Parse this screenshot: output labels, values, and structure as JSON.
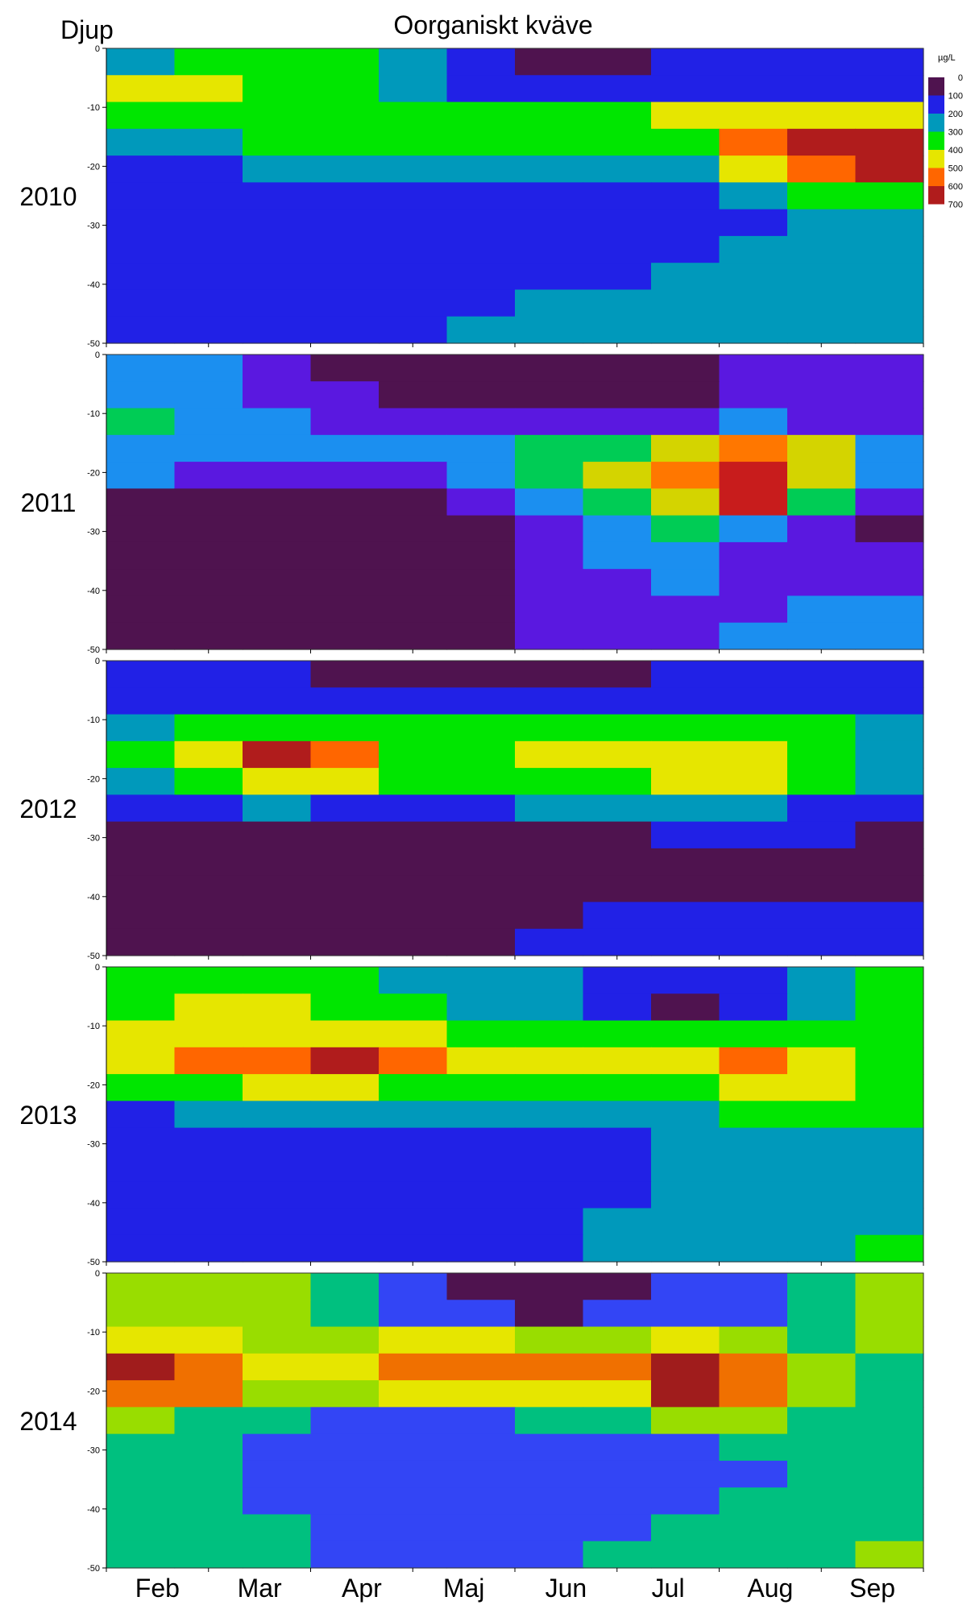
{
  "chart_data": {
    "type": "heatmap",
    "title": "Oorganiskt kväve",
    "ylabel": "Djup",
    "colorbar_unit": "µg/L",
    "colorbar_levels": [
      0,
      100,
      200,
      300,
      400,
      500,
      600,
      700
    ],
    "colorbar_colors": [
      "#4f134f",
      "#2121e6",
      "#0099bb",
      "#00e600",
      "#e6e600",
      "#ff6600",
      "#b01c1c"
    ],
    "palettes": {
      "standard": [
        "#4f134f",
        "#2121e6",
        "#0099bb",
        "#00e600",
        "#e6e600",
        "#ff6600",
        "#b01c1c"
      ],
      "alt2011": [
        "#4f134f",
        "#5a18e0",
        "#1b8ff0",
        "#00cc55",
        "#d4d400",
        "#ff7700",
        "#c81c1c"
      ],
      "alt2014": [
        "#4f134f",
        "#3345f5",
        "#00c07f",
        "#99dd00",
        "#e6e600",
        "#f07000",
        "#a01c1c"
      ]
    },
    "months": [
      "Feb",
      "Mar",
      "Apr",
      "Maj",
      "Jun",
      "Jul",
      "Aug",
      "Sep"
    ],
    "y_ticks": [
      0,
      -10,
      -20,
      -30,
      -40,
      -50
    ],
    "ylim": [
      -50,
      0
    ],
    "panels": [
      {
        "year": "2010",
        "palette": "standard",
        "grid": [
          [
            2,
            3,
            3,
            3,
            2,
            1,
            0,
            0,
            1,
            1,
            1,
            1
          ],
          [
            4,
            4,
            3,
            3,
            2,
            1,
            1,
            1,
            1,
            1,
            1,
            1
          ],
          [
            3,
            3,
            3,
            3,
            3,
            3,
            3,
            3,
            4,
            4,
            4,
            4
          ],
          [
            2,
            2,
            3,
            3,
            3,
            3,
            3,
            3,
            3,
            5,
            6,
            6
          ],
          [
            1,
            1,
            2,
            2,
            2,
            2,
            2,
            2,
            2,
            4,
            5,
            6
          ],
          [
            1,
            1,
            1,
            1,
            1,
            1,
            1,
            1,
            1,
            2,
            3,
            3
          ],
          [
            1,
            1,
            1,
            1,
            1,
            1,
            1,
            1,
            1,
            1,
            2,
            2
          ],
          [
            1,
            1,
            1,
            1,
            1,
            1,
            1,
            1,
            1,
            2,
            2,
            2
          ],
          [
            1,
            1,
            1,
            1,
            1,
            1,
            1,
            1,
            2,
            2,
            2,
            2
          ],
          [
            1,
            1,
            1,
            1,
            1,
            1,
            2,
            2,
            2,
            2,
            2,
            2
          ],
          [
            1,
            1,
            1,
            1,
            1,
            2,
            2,
            2,
            2,
            2,
            2,
            2
          ]
        ]
      },
      {
        "year": "2011",
        "palette": "alt2011",
        "grid": [
          [
            2,
            2,
            1,
            0,
            0,
            0,
            0,
            0,
            0,
            1,
            1,
            1
          ],
          [
            2,
            2,
            1,
            1,
            0,
            0,
            0,
            0,
            0,
            1,
            1,
            1
          ],
          [
            3,
            2,
            2,
            1,
            1,
            1,
            1,
            1,
            1,
            2,
            1,
            1
          ],
          [
            2,
            2,
            2,
            2,
            2,
            2,
            3,
            3,
            4,
            5,
            4,
            2
          ],
          [
            2,
            1,
            1,
            1,
            1,
            2,
            3,
            4,
            5,
            6,
            4,
            2
          ],
          [
            0,
            0,
            0,
            0,
            0,
            1,
            2,
            3,
            4,
            6,
            3,
            1
          ],
          [
            0,
            0,
            0,
            0,
            0,
            0,
            1,
            2,
            3,
            2,
            1,
            0
          ],
          [
            0,
            0,
            0,
            0,
            0,
            0,
            1,
            2,
            2,
            1,
            1,
            1
          ],
          [
            0,
            0,
            0,
            0,
            0,
            0,
            1,
            1,
            2,
            1,
            1,
            1
          ],
          [
            0,
            0,
            0,
            0,
            0,
            0,
            1,
            1,
            1,
            1,
            2,
            2
          ],
          [
            0,
            0,
            0,
            0,
            0,
            0,
            1,
            1,
            1,
            2,
            2,
            2
          ]
        ]
      },
      {
        "year": "2012",
        "palette": "standard",
        "grid": [
          [
            1,
            1,
            1,
            0,
            0,
            0,
            0,
            0,
            1,
            1,
            1,
            1
          ],
          [
            1,
            1,
            1,
            1,
            1,
            1,
            1,
            1,
            1,
            1,
            1,
            1
          ],
          [
            2,
            3,
            3,
            3,
            3,
            3,
            3,
            3,
            3,
            3,
            3,
            2
          ],
          [
            3,
            4,
            6,
            5,
            3,
            3,
            4,
            4,
            4,
            4,
            3,
            2
          ],
          [
            2,
            3,
            4,
            4,
            3,
            3,
            3,
            3,
            4,
            4,
            3,
            2
          ],
          [
            1,
            1,
            2,
            1,
            1,
            1,
            2,
            2,
            2,
            2,
            1,
            1
          ],
          [
            0,
            0,
            0,
            0,
            0,
            0,
            0,
            0,
            1,
            1,
            1,
            0
          ],
          [
            0,
            0,
            0,
            0,
            0,
            0,
            0,
            0,
            0,
            0,
            0,
            0
          ],
          [
            0,
            0,
            0,
            0,
            0,
            0,
            0,
            0,
            0,
            0,
            0,
            0
          ],
          [
            0,
            0,
            0,
            0,
            0,
            0,
            0,
            1,
            1,
            1,
            1,
            1
          ],
          [
            0,
            0,
            0,
            0,
            0,
            0,
            1,
            1,
            1,
            1,
            1,
            1
          ]
        ]
      },
      {
        "year": "2013",
        "palette": "standard",
        "grid": [
          [
            3,
            3,
            3,
            3,
            2,
            2,
            2,
            1,
            1,
            1,
            2,
            3
          ],
          [
            3,
            4,
            4,
            3,
            3,
            2,
            2,
            1,
            0,
            1,
            2,
            3
          ],
          [
            4,
            4,
            4,
            4,
            4,
            3,
            3,
            3,
            3,
            3,
            3,
            3
          ],
          [
            4,
            5,
            5,
            6,
            5,
            4,
            4,
            4,
            4,
            5,
            4,
            3
          ],
          [
            3,
            3,
            4,
            4,
            3,
            3,
            3,
            3,
            3,
            4,
            4,
            3
          ],
          [
            1,
            2,
            2,
            2,
            2,
            2,
            2,
            2,
            2,
            3,
            3,
            3
          ],
          [
            1,
            1,
            1,
            1,
            1,
            1,
            1,
            1,
            2,
            2,
            2,
            2
          ],
          [
            1,
            1,
            1,
            1,
            1,
            1,
            1,
            1,
            2,
            2,
            2,
            2
          ],
          [
            1,
            1,
            1,
            1,
            1,
            1,
            1,
            1,
            2,
            2,
            2,
            2
          ],
          [
            1,
            1,
            1,
            1,
            1,
            1,
            1,
            2,
            2,
            2,
            2,
            2
          ],
          [
            1,
            1,
            1,
            1,
            1,
            1,
            1,
            2,
            2,
            2,
            2,
            3
          ]
        ]
      },
      {
        "year": "2014",
        "palette": "alt2014",
        "grid": [
          [
            3,
            3,
            3,
            2,
            1,
            0,
            0,
            0,
            1,
            1,
            2,
            3
          ],
          [
            3,
            3,
            3,
            2,
            1,
            1,
            0,
            1,
            1,
            1,
            2,
            3
          ],
          [
            4,
            4,
            3,
            3,
            4,
            4,
            3,
            3,
            4,
            3,
            2,
            3
          ],
          [
            6,
            5,
            4,
            4,
            5,
            5,
            5,
            5,
            6,
            5,
            3,
            2
          ],
          [
            5,
            5,
            3,
            3,
            4,
            4,
            4,
            4,
            6,
            5,
            3,
            2
          ],
          [
            3,
            2,
            2,
            1,
            1,
            1,
            2,
            2,
            3,
            3,
            2,
            2
          ],
          [
            2,
            2,
            1,
            1,
            1,
            1,
            1,
            1,
            1,
            2,
            2,
            2
          ],
          [
            2,
            2,
            1,
            1,
            1,
            1,
            1,
            1,
            1,
            1,
            2,
            2
          ],
          [
            2,
            2,
            1,
            1,
            1,
            1,
            1,
            1,
            1,
            2,
            2,
            2
          ],
          [
            2,
            2,
            2,
            1,
            1,
            1,
            1,
            1,
            2,
            2,
            2,
            2
          ],
          [
            2,
            2,
            2,
            1,
            1,
            1,
            1,
            2,
            2,
            2,
            2,
            3
          ]
        ]
      }
    ]
  }
}
